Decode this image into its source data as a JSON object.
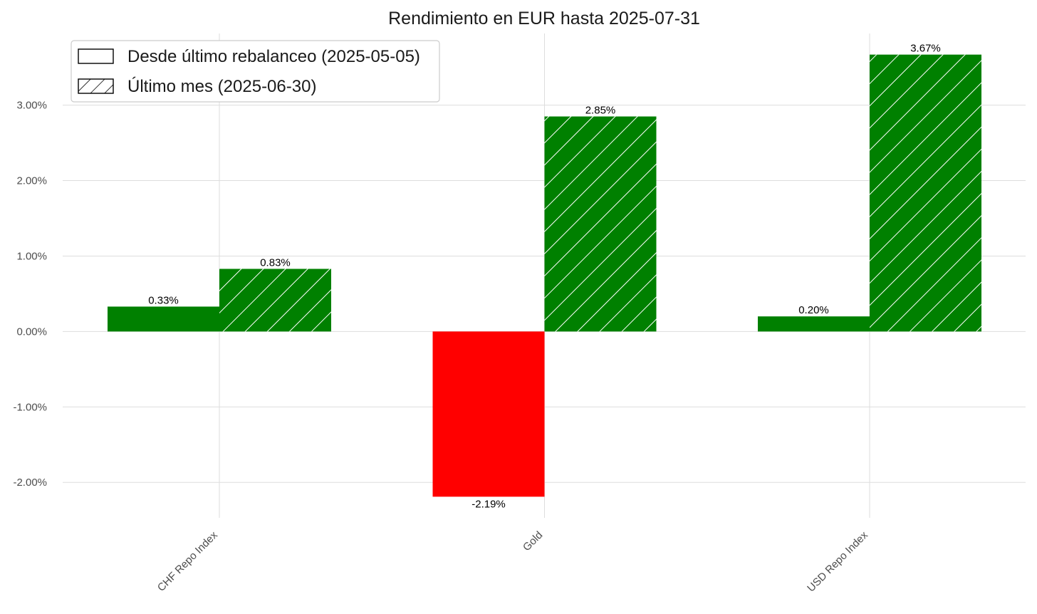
{
  "chart_data": {
    "type": "bar",
    "title": "Rendimiento en EUR hasta 2025-07-31",
    "categories": [
      "CHF Repo Index",
      "Gold",
      "USD Repo Index"
    ],
    "series": [
      {
        "name": "Desde último rebalanceo (2025-05-05)",
        "values": [
          0.33,
          -2.19,
          0.2
        ],
        "labels": [
          "0.33%",
          "-2.19%",
          "0.20%"
        ],
        "hatch": "none"
      },
      {
        "name": "Último mes (2025-06-30)",
        "values": [
          0.83,
          2.85,
          3.67
        ],
        "labels": [
          "0.83%",
          "2.85%",
          "3.67%"
        ],
        "hatch": "diagonal"
      }
    ],
    "yticks": [
      3,
      2,
      1,
      0,
      -1,
      -2
    ],
    "ytick_labels": [
      "3.00%",
      "2.00%",
      "1.00%",
      "0.00%",
      "-1.00%",
      "-2.00%"
    ],
    "ylim": [
      -2.47,
      3.95
    ],
    "xlabel": "",
    "ylabel": "",
    "grid": true,
    "legend_position": "top-left",
    "colors": {
      "positive": "#008000",
      "negative": "#ff0000",
      "hatch_line": "#ffffff",
      "grid": "#dddddd"
    }
  }
}
